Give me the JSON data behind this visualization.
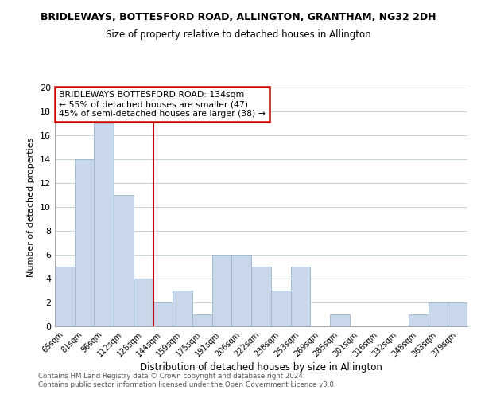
{
  "title_line1": "BRIDLEWAYS, BOTTESFORD ROAD, ALLINGTON, GRANTHAM, NG32 2DH",
  "title_line2": "Size of property relative to detached houses in Allington",
  "xlabel": "Distribution of detached houses by size in Allington",
  "ylabel": "Number of detached properties",
  "categories": [
    "65sqm",
    "81sqm",
    "96sqm",
    "112sqm",
    "128sqm",
    "144sqm",
    "159sqm",
    "175sqm",
    "191sqm",
    "206sqm",
    "222sqm",
    "238sqm",
    "253sqm",
    "269sqm",
    "285sqm",
    "301sqm",
    "316sqm",
    "332sqm",
    "348sqm",
    "363sqm",
    "379sqm"
  ],
  "values": [
    5,
    14,
    17,
    11,
    4,
    2,
    3,
    1,
    6,
    6,
    5,
    3,
    5,
    0,
    1,
    0,
    0,
    0,
    1,
    2,
    2
  ],
  "bar_color": "#c8d8ea",
  "bar_edge_color": "#9ab5cc",
  "reference_line_x": 4.5,
  "reference_line_color": "#cc0000",
  "ylim": [
    0,
    20
  ],
  "yticks": [
    0,
    2,
    4,
    6,
    8,
    10,
    12,
    14,
    16,
    18,
    20
  ],
  "annotation_text_line1": "BRIDLEWAYS BOTTESFORD ROAD: 134sqm",
  "annotation_text_line2": "← 55% of detached houses are smaller (47)",
  "annotation_text_line3": "45% of semi-detached houses are larger (38) →",
  "annotation_box_color": "#ffffff",
  "annotation_box_edge_color": "#cc0000",
  "footer_line1": "Contains HM Land Registry data © Crown copyright and database right 2024.",
  "footer_line2": "Contains public sector information licensed under the Open Government Licence v3.0.",
  "background_color": "#ffffff",
  "grid_color": "#c8d0d8"
}
